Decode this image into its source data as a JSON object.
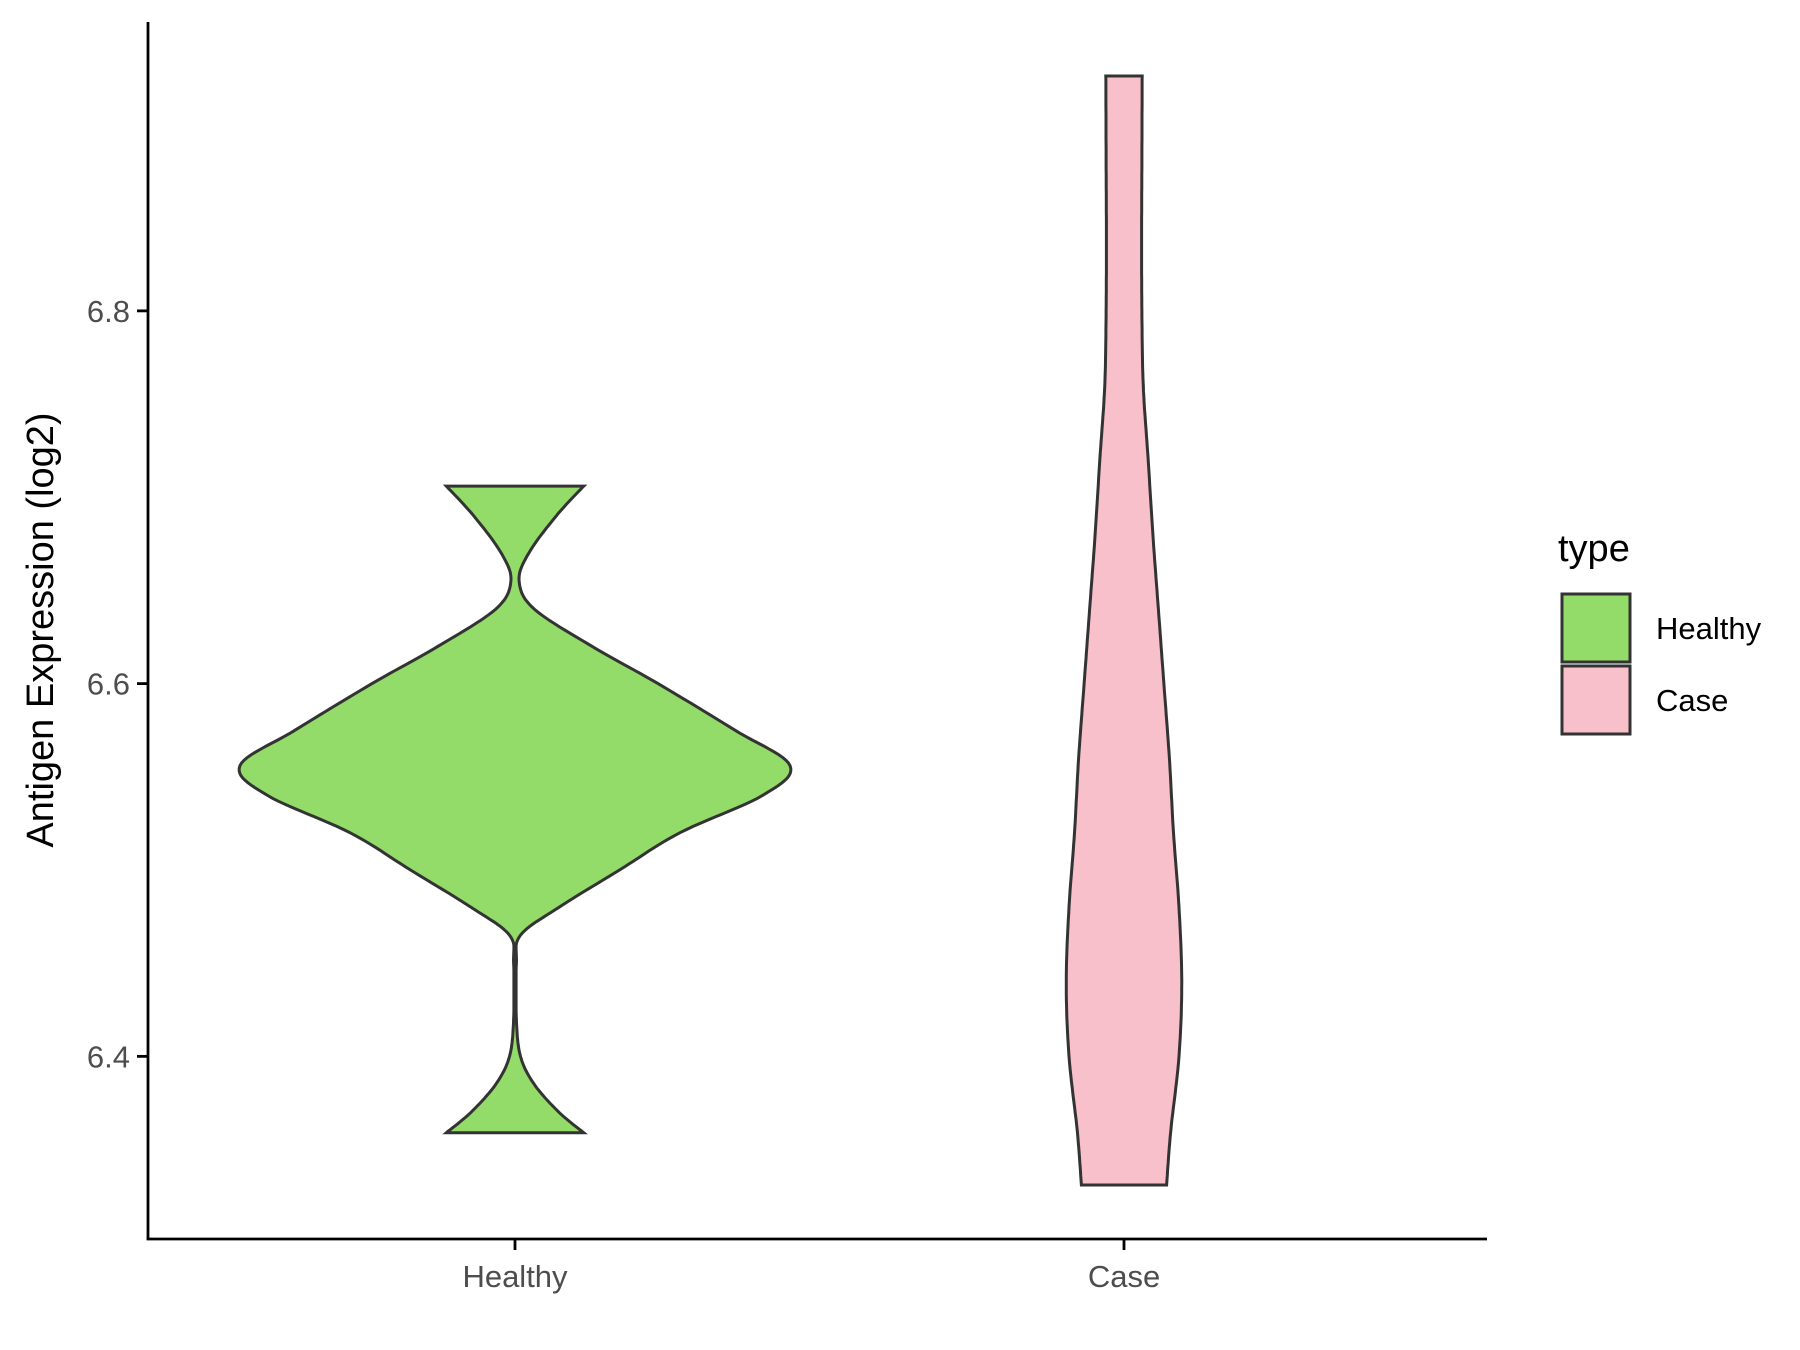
{
  "chart_data": {
    "type": "violin",
    "title": "",
    "xlabel": "",
    "ylabel": "Antigen Expression (log2)",
    "categories": [
      "Healthy",
      "Case"
    ],
    "ylim": [
      6.302,
      6.955
    ],
    "yticks": [
      6.4,
      6.6,
      6.8
    ],
    "ytick_labels": [
      "6.4",
      "6.6",
      "6.8"
    ],
    "grid": false,
    "legend": {
      "title": "type",
      "position": "right",
      "entries": [
        {
          "label": "Healthy",
          "color": "#93dc69"
        },
        {
          "label": "Case",
          "color": "#f7c0cb"
        }
      ]
    },
    "series": [
      {
        "name": "Healthy",
        "color": "#93dc69",
        "min": 6.359,
        "max": 6.706,
        "density": [
          [
            6.359,
            0.25
          ],
          [
            6.37,
            0.16
          ],
          [
            6.385,
            0.07
          ],
          [
            6.4,
            0.02
          ],
          [
            6.42,
            0.005
          ],
          [
            6.45,
            0.005
          ],
          [
            6.465,
            0.02
          ],
          [
            6.48,
            0.16
          ],
          [
            6.5,
            0.38
          ],
          [
            6.52,
            0.6
          ],
          [
            6.54,
            0.9
          ],
          [
            6.556,
            1.0
          ],
          [
            6.575,
            0.8
          ],
          [
            6.6,
            0.52
          ],
          [
            6.62,
            0.28
          ],
          [
            6.64,
            0.07
          ],
          [
            6.655,
            0.015
          ],
          [
            6.67,
            0.05
          ],
          [
            6.69,
            0.15
          ],
          [
            6.706,
            0.25
          ]
        ]
      },
      {
        "name": "Case",
        "color": "#f7c0cb",
        "min": 6.331,
        "max": 6.926,
        "density": [
          [
            6.331,
            0.155
          ],
          [
            6.36,
            0.17
          ],
          [
            6.4,
            0.2
          ],
          [
            6.44,
            0.21
          ],
          [
            6.48,
            0.2
          ],
          [
            6.52,
            0.18
          ],
          [
            6.56,
            0.165
          ],
          [
            6.6,
            0.145
          ],
          [
            6.64,
            0.125
          ],
          [
            6.68,
            0.105
          ],
          [
            6.72,
            0.088
          ],
          [
            6.76,
            0.07
          ],
          [
            6.8,
            0.065
          ],
          [
            6.84,
            0.064
          ],
          [
            6.88,
            0.065
          ],
          [
            6.926,
            0.066
          ]
        ]
      }
    ]
  }
}
